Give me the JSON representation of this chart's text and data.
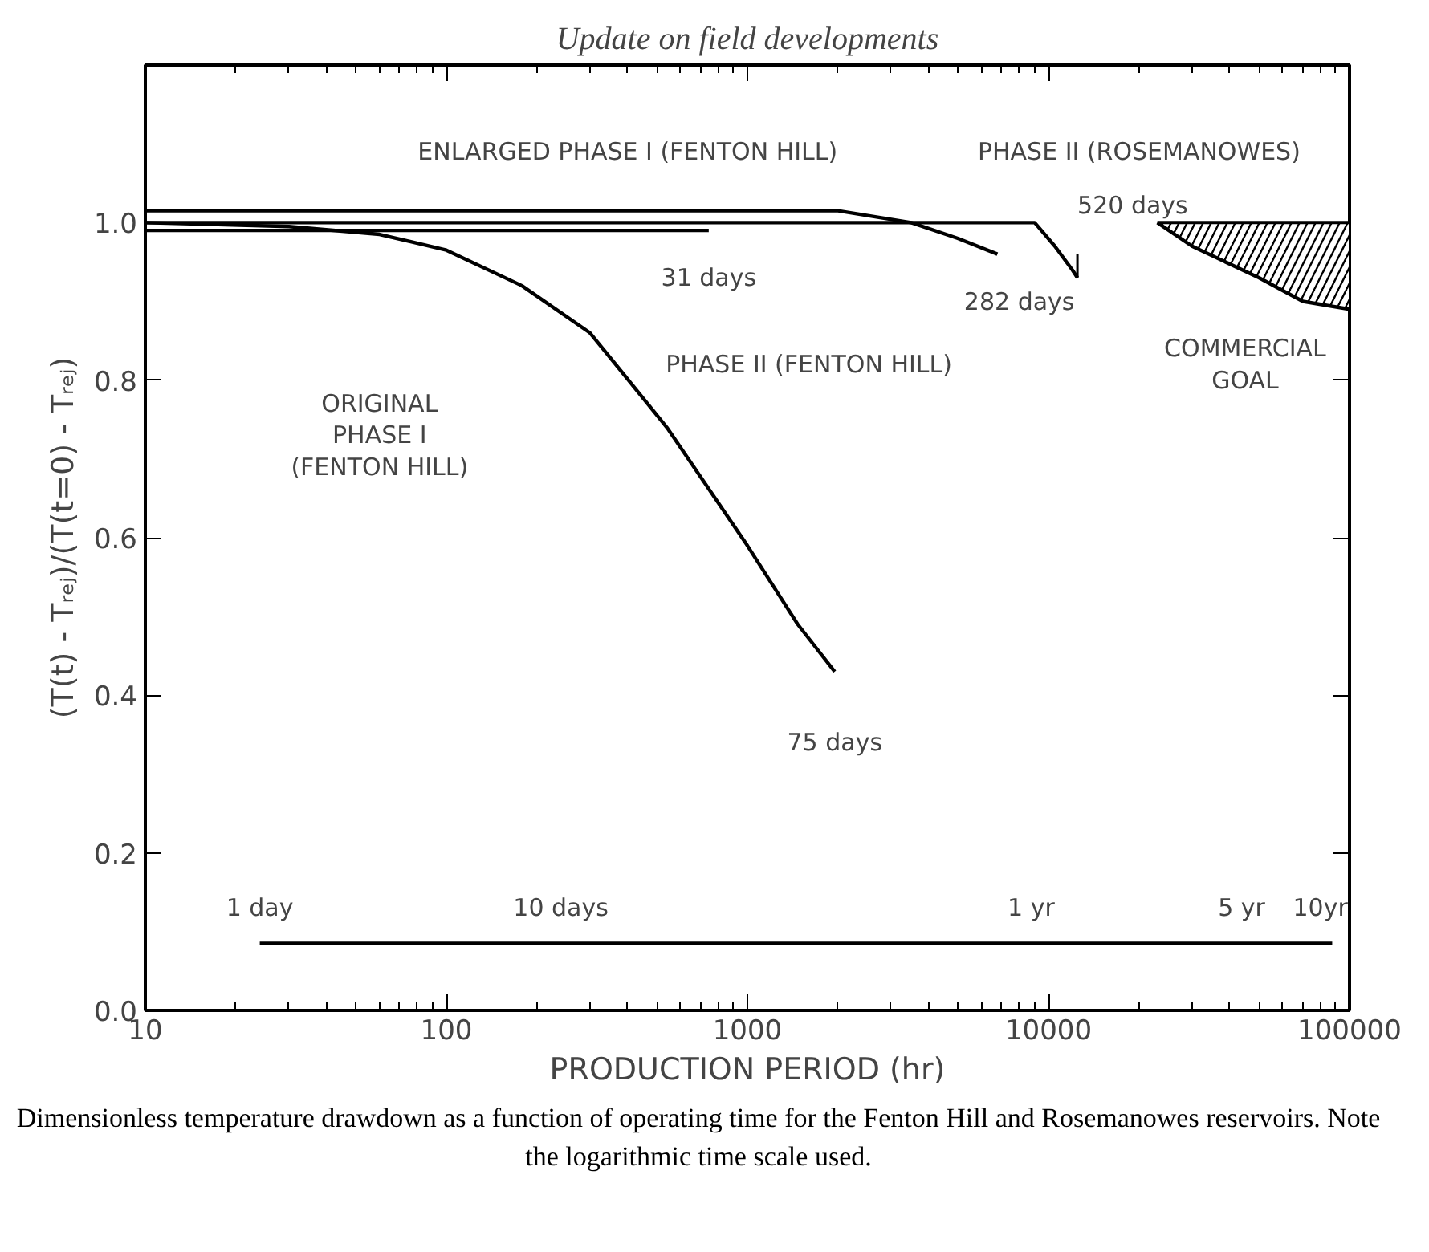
{
  "chart_data": {
    "type": "line",
    "title": "Update on field developments",
    "xlabel": "PRODUCTION PERIOD (hr)",
    "ylabel": "(T(t) - Tᵣₑⱼ)/(T(t=0) - Tᵣₑⱼ)",
    "log": "x",
    "xlim": [
      10,
      100000
    ],
    "xticks": [
      10,
      100,
      1000,
      10000,
      100000
    ],
    "ylim": [
      0,
      1.2
    ],
    "yticks": [
      {
        "value": 0,
        "label": "0.0"
      },
      {
        "value": 0.2,
        "label": "0.2"
      },
      {
        "value": 0.4,
        "label": "0.4"
      },
      {
        "value": 0.6,
        "label": "0.6"
      },
      {
        "value": 0.8,
        "label": "0.8"
      },
      {
        "value": 1.0,
        "label": "1.0"
      }
    ],
    "grid": false,
    "series": [
      {
        "color": "#000000",
        "x": [
          10,
          30,
          60,
          100,
          178,
          300,
          540,
          1000,
          1470,
          1950
        ],
        "values": [
          1.0,
          0.995,
          0.985,
          0.965,
          0.92,
          0.86,
          0.74,
          0.59,
          0.49,
          0.43
        ]
      },
      {
        "color": "#000000",
        "x": [
          10,
          744
        ],
        "values": [
          0.99,
          0.99
        ]
      },
      {
        "color": "#000000",
        "x": [
          10,
          2000,
          3500,
          5000,
          6768
        ],
        "values": [
          1.015,
          1.015,
          1.0,
          0.98,
          0.96
        ]
      },
      {
        "color": "#000000",
        "x": [
          10,
          9000,
          10500,
          12000,
          12480
        ],
        "values": [
          1.0,
          1.0,
          0.97,
          0.94,
          0.93
        ]
      },
      {
        "color": "#000000",
        "x": [
          23000,
          30000,
          50000,
          70000,
          100000
        ],
        "values": [
          1.0,
          0.97,
          0.93,
          0.9,
          0.89
        ],
        "lower": [
          1.0,
          0.97,
          0.93,
          0.9,
          0.89
        ],
        "upper": [
          1.0,
          1.0,
          1.0,
          1.0,
          1.0
        ]
      },
      {
        "color": "#000000",
        "x": [
          24,
          240,
          8760,
          43800,
          87600
        ],
        "values": [
          0.085,
          0.085,
          0.085,
          0.085,
          0.085
        ]
      }
    ],
    "annotations": [
      "ENLARGED PHASE I (FENTON HILL)",
      "PHASE II (ROSEMANOWES)",
      {
        "text": "520 days",
        "x": 12480,
        "y": 0.93
      },
      "31 days",
      "282 days",
      "PHASE II (FENTON HILL)",
      "ORIGINAL",
      "PHASE I",
      "(FENTON HILL)",
      "COMMERCIAL",
      "GOAL",
      "75 days",
      "1 day",
      "10 days",
      "1 yr",
      "5 yr",
      "10yr",
      "Dimensionless temperature drawdown as a function of operating time for the Fenton Hill and Rosemanowes reservoirs. Note the logarithmic time scale used."
    ]
  }
}
